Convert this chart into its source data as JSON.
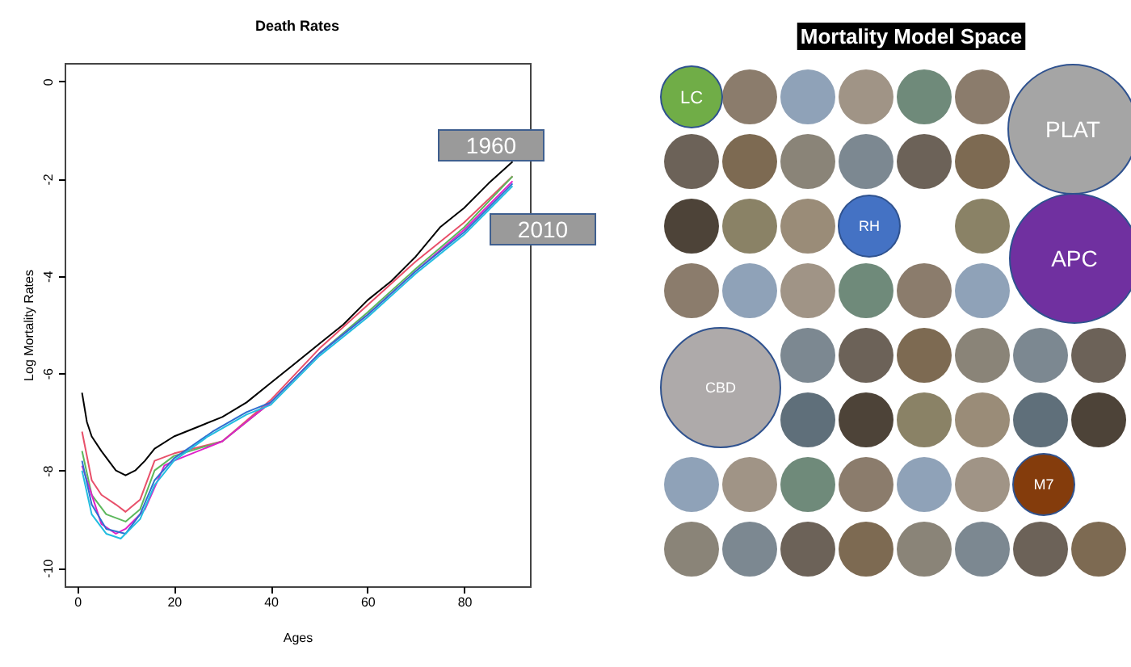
{
  "chart_data": [
    {
      "type": "line",
      "title": "Death Rates",
      "xlabel": "Ages",
      "ylabel": "Log Mortality Rates",
      "xlim": [
        -2.6,
        93.6
      ],
      "ylim": [
        -10.38,
        0.38
      ],
      "xticks": [
        0,
        20,
        40,
        60,
        80
      ],
      "yticks": [
        0,
        -2,
        -4,
        -6,
        -8,
        -10
      ],
      "grid": false,
      "legend": false,
      "line_style": "solid",
      "marker": "none",
      "series": [
        {
          "color": "#000000",
          "x": [
            1,
            2,
            3,
            5,
            8,
            10,
            12,
            14,
            16,
            20,
            25,
            30,
            35,
            40,
            45,
            50,
            55,
            60,
            65,
            70,
            75,
            80,
            85,
            90
          ],
          "values": [
            -6.4,
            -7.0,
            -7.3,
            -7.6,
            -8.0,
            -8.1,
            -8.0,
            -7.8,
            -7.55,
            -7.3,
            -7.1,
            -6.9,
            -6.6,
            -6.2,
            -5.8,
            -5.4,
            -5.0,
            -4.5,
            -4.1,
            -3.6,
            -3.0,
            -2.6,
            -2.1,
            -1.65
          ]
        },
        {
          "color": "#e8506a",
          "x": [
            1,
            3,
            5,
            8,
            10,
            13,
            16,
            20,
            30,
            40,
            50,
            60,
            70,
            80,
            90
          ],
          "values": [
            -7.2,
            -8.2,
            -8.5,
            -8.7,
            -8.85,
            -8.6,
            -7.8,
            -7.65,
            -7.4,
            -6.55,
            -5.5,
            -4.6,
            -3.7,
            -2.9,
            -1.95
          ]
        },
        {
          "color": "#5cb85c",
          "x": [
            1,
            3,
            6,
            10,
            13,
            16,
            20,
            30,
            40,
            50,
            60,
            70,
            80,
            90
          ],
          "values": [
            -7.6,
            -8.5,
            -8.9,
            -9.05,
            -8.8,
            -8.0,
            -7.7,
            -7.4,
            -6.6,
            -5.6,
            -4.75,
            -3.85,
            -3.0,
            -1.95
          ]
        },
        {
          "color": "#e020c8",
          "x": [
            1,
            5,
            8,
            10,
            14,
            18,
            20,
            30,
            40,
            50,
            60,
            70,
            80,
            90
          ],
          "values": [
            -7.9,
            -9.1,
            -9.3,
            -9.2,
            -8.8,
            -7.9,
            -7.8,
            -7.4,
            -6.6,
            -5.6,
            -4.8,
            -3.9,
            -3.05,
            -2.05
          ]
        },
        {
          "color": "#2f6fd0",
          "x": [
            1,
            3,
            6,
            10,
            13,
            16,
            20,
            28,
            35,
            40,
            50,
            60,
            70,
            80,
            90
          ],
          "values": [
            -7.8,
            -8.7,
            -9.2,
            -9.3,
            -8.9,
            -8.2,
            -7.75,
            -7.2,
            -6.8,
            -6.6,
            -5.6,
            -4.8,
            -3.9,
            -3.1,
            -2.1
          ]
        },
        {
          "color": "#22bde0",
          "x": [
            1,
            3,
            6,
            9,
            13,
            16,
            20,
            27,
            35,
            40,
            50,
            60,
            70,
            80,
            90
          ],
          "values": [
            -8.0,
            -8.9,
            -9.3,
            -9.4,
            -9.0,
            -8.3,
            -7.8,
            -7.3,
            -6.85,
            -6.65,
            -5.65,
            -4.85,
            -3.95,
            -3.15,
            -2.15
          ]
        }
      ],
      "annotations": [
        "1960",
        "2010"
      ]
    },
    {
      "type": "other",
      "title": "Mortality Model Space",
      "annotations": [
        "LC",
        "PLAT",
        "RH",
        "APC",
        "CBD",
        "M7"
      ]
    }
  ]
}
